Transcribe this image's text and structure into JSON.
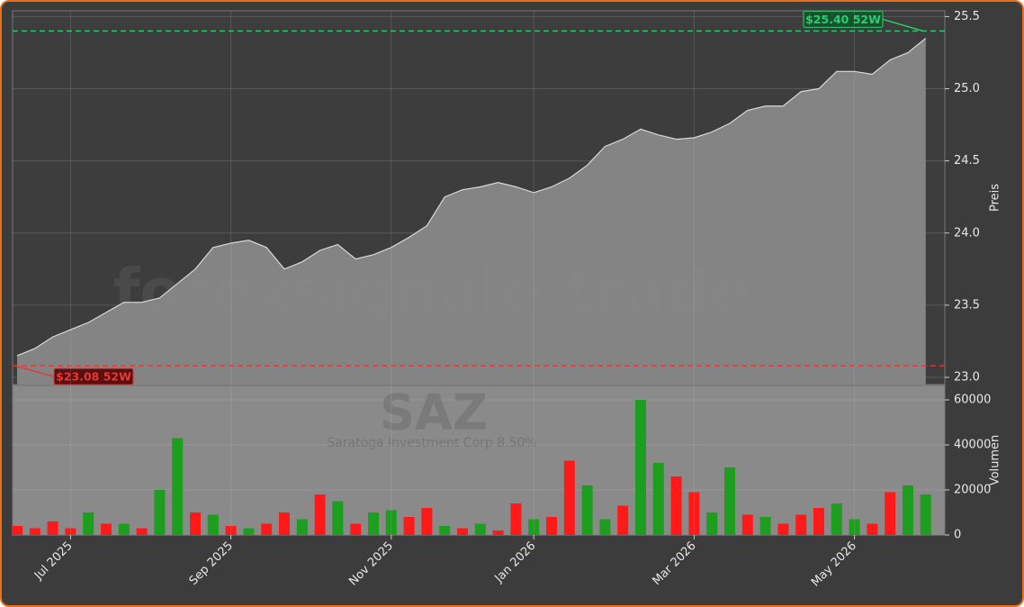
{
  "chart_data": [
    {
      "type": "area",
      "y_label": "Preis",
      "watermark": "forexsignale.trade",
      "color": "#888888",
      "line_color": "#d8d8d8",
      "values": [
        23.15,
        23.2,
        23.28,
        23.33,
        23.38,
        23.45,
        23.52,
        23.52,
        23.55,
        23.65,
        23.75,
        23.9,
        23.93,
        23.95,
        23.9,
        23.75,
        23.8,
        23.88,
        23.92,
        23.82,
        23.85,
        23.9,
        23.97,
        24.05,
        24.25,
        24.3,
        24.32,
        24.35,
        24.32,
        24.28,
        24.32,
        24.38,
        24.47,
        24.6,
        24.65,
        24.72,
        24.68,
        24.65,
        24.66,
        24.7,
        24.76,
        24.85,
        24.88,
        24.88,
        24.98,
        25.0,
        25.12,
        25.12,
        25.1,
        25.2,
        25.25,
        25.35
      ],
      "ylim": [
        22.95,
        25.54
      ],
      "yticks": [
        {
          "value": 23,
          "label": "23.0"
        },
        23.5,
        {
          "value": 24,
          "label": "24.0"
        },
        24.5,
        {
          "value": 25,
          "label": "25.0"
        },
        25.5
      ],
      "grid": true,
      "annotations": [
        {
          "value": 25.4,
          "label": "$25.40 52W",
          "color": "#2ecc71"
        },
        {
          "value": 23.08,
          "label": "$23.08 52W",
          "color": "#e53935"
        }
      ]
    },
    {
      "type": "bar",
      "y_label": "Volumen",
      "title": "SAZ",
      "subtitle": "Saratoga Investment Corp 8.50%",
      "categories": [
        null,
        null,
        null,
        "Jul 2025",
        null,
        null,
        null,
        null,
        null,
        null,
        null,
        null,
        "Sep 2025",
        null,
        null,
        null,
        null,
        null,
        null,
        null,
        null,
        "Nov 2025",
        null,
        null,
        null,
        null,
        null,
        null,
        null,
        "Jan 2026",
        null,
        null,
        null,
        null,
        null,
        null,
        null,
        null,
        "Mar 2026",
        null,
        null,
        null,
        null,
        null,
        null,
        null,
        null,
        "May 2026",
        null,
        null,
        null,
        null
      ],
      "series": [
        {
          "name": "Volumen",
          "values": [
            4000,
            3000,
            6000,
            3000,
            10000,
            5000,
            5000,
            3000,
            20000,
            43000,
            10000,
            9000,
            4000,
            3000,
            5000,
            10000,
            7000,
            18000,
            15000,
            5000,
            10000,
            11000,
            8000,
            12000,
            4000,
            3000,
            5000,
            2000,
            14000,
            7000,
            8000,
            33000,
            22000,
            7000,
            13000,
            60000,
            32000,
            26000,
            19000,
            10000,
            30000,
            9000,
            8000,
            5000,
            9000,
            12000,
            14000,
            7000,
            5000,
            19000,
            22000,
            18000
          ],
          "colors": [
            "#ff1a1a",
            "#ff1a1a",
            "#ff1a1a",
            "#ff1a1a",
            "#1e9e1e",
            "#ff1a1a",
            "#1e9e1e",
            "#ff1a1a",
            "#1e9e1e",
            "#1e9e1e",
            "#ff1a1a",
            "#1e9e1e",
            "#ff1a1a",
            "#1e9e1e",
            "#ff1a1a",
            "#ff1a1a",
            "#1e9e1e",
            "#ff1a1a",
            "#1e9e1e",
            "#ff1a1a",
            "#1e9e1e",
            "#1e9e1e",
            "#ff1a1a",
            "#ff1a1a",
            "#1e9e1e",
            "#ff1a1a",
            "#1e9e1e",
            "#ff1a1a",
            "#ff1a1a",
            "#1e9e1e",
            "#ff1a1a",
            "#ff1a1a",
            "#1e9e1e",
            "#1e9e1e",
            "#ff1a1a",
            "#1e9e1e",
            "#1e9e1e",
            "#ff1a1a",
            "#ff1a1a",
            "#1e9e1e",
            "#1e9e1e",
            "#ff1a1a",
            "#1e9e1e",
            "#ff1a1a",
            "#ff1a1a",
            "#ff1a1a",
            "#1e9e1e",
            "#1e9e1e",
            "#ff1a1a",
            "#ff1a1a",
            "#1e9e1e",
            "#1e9e1e"
          ]
        }
      ],
      "ylim": [
        0,
        66400
      ],
      "yticks": [
        0,
        20000,
        40000,
        60000
      ],
      "grid": true
    }
  ]
}
